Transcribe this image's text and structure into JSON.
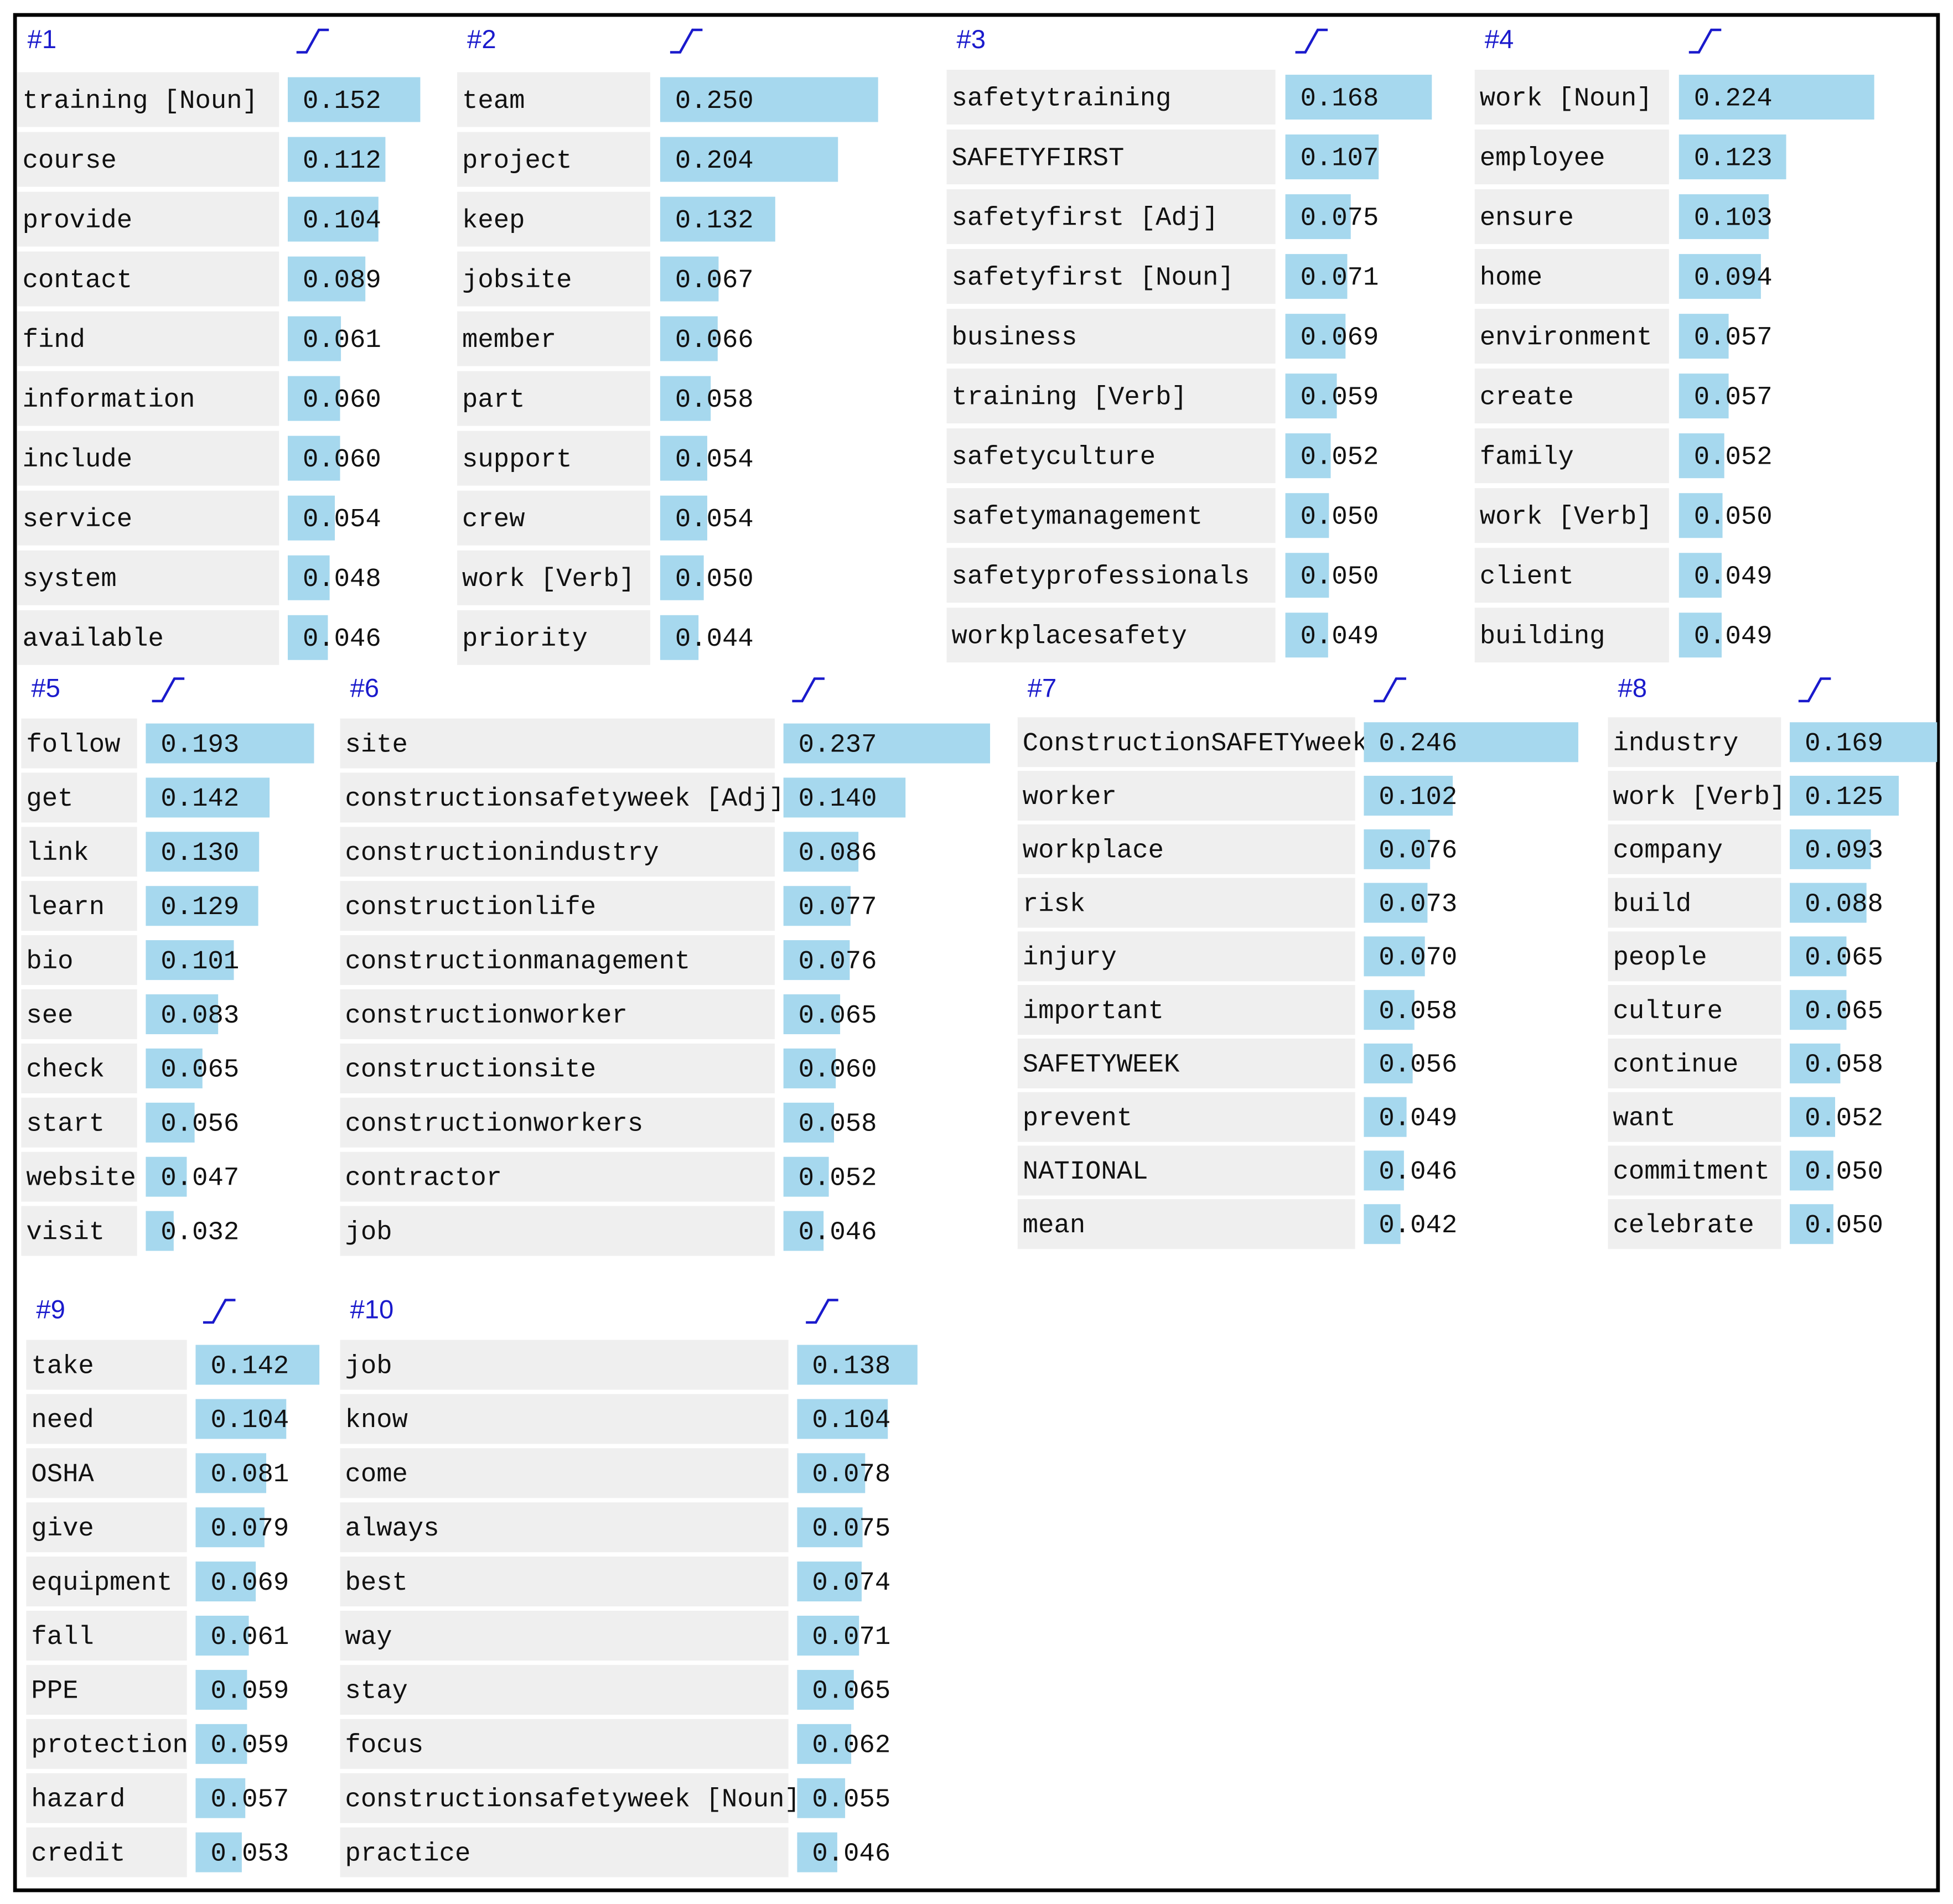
{
  "topics": [
    {
      "label": "#1",
      "words": [
        "training [Noun]",
        "course",
        "provide",
        "contact",
        "find",
        "information",
        "include",
        "service",
        "system",
        "available"
      ],
      "values": [
        0.152,
        0.112,
        0.104,
        0.089,
        0.061,
        0.06,
        0.06,
        0.054,
        0.048,
        0.046
      ],
      "value_labels": [
        "0.152",
        "0.112",
        "0.104",
        "0.089",
        "0.061",
        "0.060",
        "0.060",
        "0.054",
        "0.048",
        "0.046"
      ]
    },
    {
      "label": "#2",
      "words": [
        "team",
        "project",
        "keep",
        "jobsite",
        "member",
        "part",
        "support",
        "crew",
        "work [Verb]",
        "priority"
      ],
      "values": [
        0.25,
        0.204,
        0.132,
        0.067,
        0.066,
        0.058,
        0.054,
        0.054,
        0.05,
        0.044
      ],
      "value_labels": [
        "0.250",
        "0.204",
        "0.132",
        "0.067",
        "0.066",
        "0.058",
        "0.054",
        "0.054",
        "0.050",
        "0.044"
      ]
    },
    {
      "label": "#3",
      "words": [
        "safetytraining",
        "SAFETYFIRST",
        "safetyfirst [Adj]",
        "safetyfirst [Noun]",
        "business",
        "training [Verb]",
        "safetyculture",
        "safetymanagement",
        "safetyprofessionals",
        "workplacesafety"
      ],
      "values": [
        0.168,
        0.107,
        0.075,
        0.071,
        0.069,
        0.059,
        0.052,
        0.05,
        0.05,
        0.049
      ],
      "value_labels": [
        "0.168",
        "0.107",
        "0.075",
        "0.071",
        "0.069",
        "0.059",
        "0.052",
        "0.050",
        "0.050",
        "0.049"
      ]
    },
    {
      "label": "#4",
      "words": [
        "work [Noun]",
        "employee",
        "ensure",
        "home",
        "environment",
        "create",
        "family",
        "work [Verb]",
        "client",
        "building"
      ],
      "values": [
        0.224,
        0.123,
        0.103,
        0.094,
        0.057,
        0.057,
        0.052,
        0.05,
        0.049,
        0.049
      ],
      "value_labels": [
        "0.224",
        "0.123",
        "0.103",
        "0.094",
        "0.057",
        "0.057",
        "0.052",
        "0.050",
        "0.049",
        "0.049"
      ]
    },
    {
      "label": "#5",
      "words": [
        "follow",
        "get",
        "link",
        "learn",
        "bio",
        "see",
        "check",
        "start",
        "website",
        "visit"
      ],
      "values": [
        0.193,
        0.142,
        0.13,
        0.129,
        0.101,
        0.083,
        0.065,
        0.056,
        0.047,
        0.032
      ],
      "value_labels": [
        "0.193",
        "0.142",
        "0.130",
        "0.129",
        "0.101",
        "0.083",
        "0.065",
        "0.056",
        "0.047",
        "0.032"
      ]
    },
    {
      "label": "#6",
      "words": [
        "site",
        "constructionsafetyweek [Adj]",
        "constructionindustry",
        "constructionlife",
        "constructionmanagement",
        "constructionworker",
        "constructionsite",
        "constructionworkers",
        "contractor",
        "job"
      ],
      "values": [
        0.237,
        0.14,
        0.086,
        0.077,
        0.076,
        0.065,
        0.06,
        0.058,
        0.052,
        0.046
      ],
      "value_labels": [
        "0.237",
        "0.140",
        "0.086",
        "0.077",
        "0.076",
        "0.065",
        "0.060",
        "0.058",
        "0.052",
        "0.046"
      ]
    },
    {
      "label": "#7",
      "words": [
        "ConstructionSAFETYweek",
        "worker",
        "workplace",
        "risk",
        "injury",
        "important",
        "SAFETYWEEK",
        "prevent",
        "NATIONAL",
        "mean"
      ],
      "values": [
        0.246,
        0.102,
        0.076,
        0.073,
        0.07,
        0.058,
        0.056,
        0.049,
        0.046,
        0.042
      ],
      "value_labels": [
        "0.246",
        "0.102",
        "0.076",
        "0.073",
        "0.070",
        "0.058",
        "0.056",
        "0.049",
        "0.046",
        "0.042"
      ]
    },
    {
      "label": "#8",
      "words": [
        "industry",
        "work [Verb]",
        "company",
        "build",
        "people",
        "culture",
        "continue",
        "want",
        "commitment",
        "celebrate"
      ],
      "values": [
        0.169,
        0.125,
        0.093,
        0.088,
        0.065,
        0.065,
        0.058,
        0.052,
        0.05,
        0.05
      ],
      "value_labels": [
        "0.169",
        "0.125",
        "0.093",
        "0.088",
        "0.065",
        "0.065",
        "0.058",
        "0.052",
        "0.050",
        "0.050"
      ]
    },
    {
      "label": "#9",
      "words": [
        "take",
        "need",
        "OSHA",
        "give",
        "equipment",
        "fall",
        "PPE",
        "protection",
        "hazard",
        "credit"
      ],
      "values": [
        0.142,
        0.104,
        0.081,
        0.079,
        0.069,
        0.061,
        0.059,
        0.059,
        0.057,
        0.053
      ],
      "value_labels": [
        "0.142",
        "0.104",
        "0.081",
        "0.079",
        "0.069",
        "0.061",
        "0.059",
        "0.059",
        "0.057",
        "0.053"
      ]
    },
    {
      "label": "#10",
      "words": [
        "job",
        "know",
        "come",
        "always",
        "best",
        "way",
        "stay",
        "focus",
        "constructionsafetyweek [Noun]",
        "practice"
      ],
      "values": [
        0.138,
        0.104,
        0.078,
        0.075,
        0.074,
        0.071,
        0.065,
        0.062,
        0.055,
        0.046
      ],
      "value_labels": [
        "0.138",
        "0.104",
        "0.078",
        "0.075",
        "0.074",
        "0.071",
        "0.065",
        "0.062",
        "0.055",
        "0.046"
      ]
    }
  ]
}
